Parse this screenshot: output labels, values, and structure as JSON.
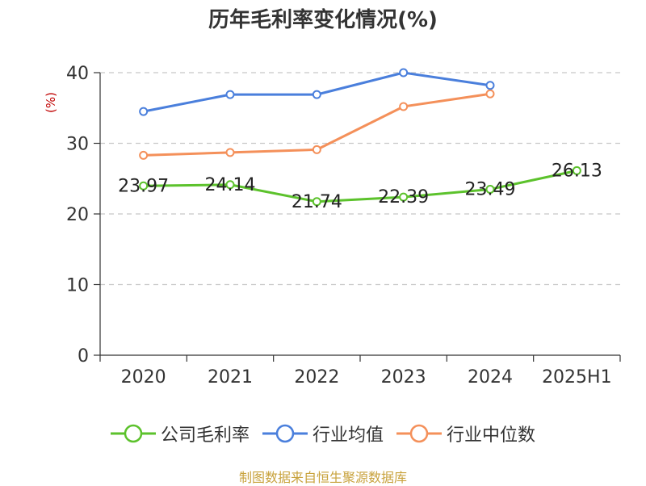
{
  "chart_data": {
    "type": "line",
    "title": "历年毛利率变化情况(%)",
    "ylabel": "(%)",
    "categories": [
      "2020",
      "2021",
      "2022",
      "2023",
      "2024",
      "2025H1"
    ],
    "ylim": [
      0,
      40
    ],
    "yticks": [
      0,
      10,
      20,
      30,
      40
    ],
    "grid": true,
    "legend_position": "bottom",
    "series": [
      {
        "name": "公司毛利率",
        "color": "#5cc22c",
        "show_labels": true,
        "values": [
          23.97,
          24.14,
          21.74,
          22.39,
          23.49,
          26.13
        ]
      },
      {
        "name": "行业均值",
        "color": "#4a7fdc",
        "show_labels": false,
        "values": [
          34.5,
          36.9,
          36.9,
          40.0,
          38.2,
          null
        ]
      },
      {
        "name": "行业中位数",
        "color": "#f4905a",
        "show_labels": false,
        "values": [
          28.3,
          28.7,
          29.1,
          35.2,
          37.0,
          null
        ]
      }
    ]
  },
  "source": "制图数据来自恒生聚源数据库"
}
